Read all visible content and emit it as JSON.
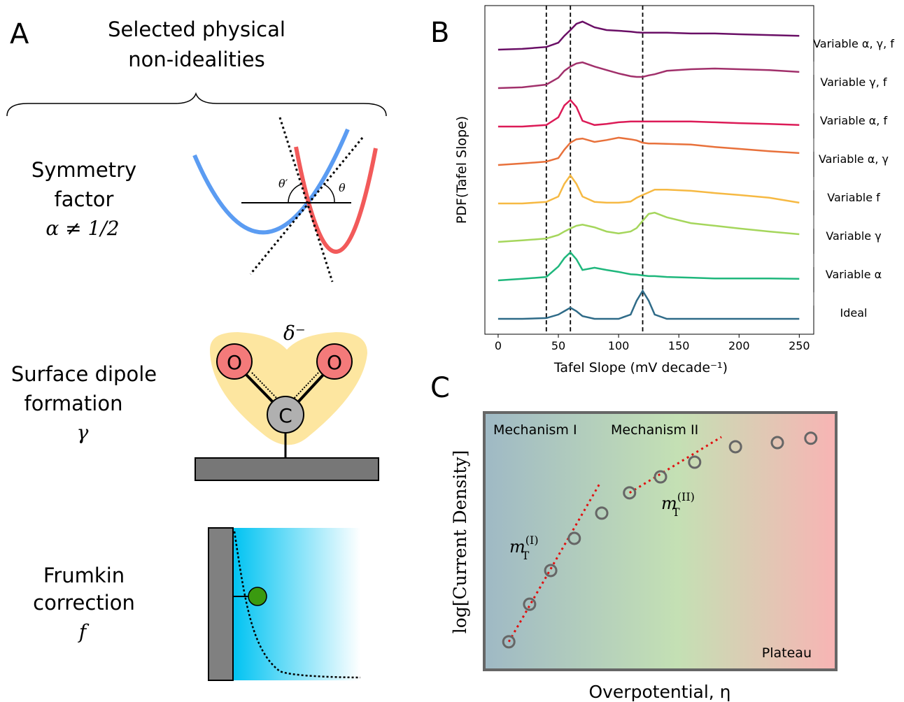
{
  "panel_a": {
    "label": "A",
    "heading_lines": [
      "Selected physical",
      "non-idealities"
    ],
    "symmetry": {
      "lines": [
        "Symmetry",
        "factor"
      ],
      "symbol": "α ≠ 1/2",
      "angle_left": "θ′",
      "angle_right": "θ"
    },
    "dipole": {
      "lines": [
        "Surface dipole",
        "formation"
      ],
      "symbol": "γ",
      "charge": "δ⁻",
      "atom_o1": "O",
      "atom_o2": "O",
      "atom_c": "C"
    },
    "frumkin": {
      "lines": [
        "Frumkin",
        "correction"
      ],
      "symbol": "f"
    }
  },
  "chart_data": [
    {
      "type": "ridgeline",
      "panel_label": "B",
      "x_label": "Tafel Slope (mV decade⁻¹)",
      "y_label": "PDF(Tafel Slope)",
      "xlim": [
        -11,
        262
      ],
      "xticks": [
        0,
        50,
        100,
        150,
        200,
        250
      ],
      "reference_lines": [
        40,
        60,
        120
      ],
      "x": [
        0,
        20,
        40,
        50,
        55,
        60,
        65,
        70,
        80,
        90,
        100,
        110,
        115,
        120,
        125,
        130,
        140,
        160,
        180,
        200,
        225,
        250
      ],
      "series": [
        {
          "name": "Ideal",
          "color": "#2f6b88",
          "values": [
            0,
            0,
            0.02,
            0.11,
            0.2,
            0.29,
            0.2,
            0.07,
            0,
            0,
            0,
            0.11,
            0.47,
            0.73,
            0.47,
            0.11,
            0,
            0,
            0,
            0,
            0,
            0
          ]
        },
        {
          "name": "Variable α",
          "color": "#1fb77c",
          "values": [
            0,
            0.04,
            0.09,
            0.36,
            0.58,
            0.73,
            0.55,
            0.27,
            0.33,
            0.27,
            0.22,
            0.16,
            0.15,
            0.13,
            0.11,
            0.11,
            0.09,
            0.07,
            0.05,
            0.05,
            0.05,
            0.04
          ]
        },
        {
          "name": "Variable γ",
          "color": "#a5d65c",
          "values": [
            0,
            0.04,
            0.09,
            0.18,
            0.27,
            0.35,
            0.42,
            0.45,
            0.38,
            0.27,
            0.22,
            0.27,
            0.36,
            0.55,
            0.73,
            0.76,
            0.64,
            0.49,
            0.42,
            0.35,
            0.27,
            0.2
          ]
        },
        {
          "name": "Variable f",
          "color": "#f6b943",
          "values": [
            0,
            0,
            0.04,
            0.18,
            0.51,
            0.73,
            0.51,
            0.18,
            0.04,
            0.02,
            0.02,
            0.05,
            0.15,
            0.22,
            0.29,
            0.36,
            0.36,
            0.33,
            0.27,
            0.22,
            0.15,
            0.02
          ]
        },
        {
          "name": "Variable α, γ",
          "color": "#e8713b",
          "values": [
            0,
            0.04,
            0.09,
            0.18,
            0.4,
            0.58,
            0.67,
            0.69,
            0.6,
            0.65,
            0.71,
            0.67,
            0.64,
            0.58,
            0.56,
            0.56,
            0.55,
            0.53,
            0.47,
            0.42,
            0.36,
            0.31
          ]
        },
        {
          "name": "Variable α, f",
          "color": "#dc1b57",
          "values": [
            0,
            0,
            0.04,
            0.24,
            0.55,
            0.69,
            0.51,
            0.15,
            0.04,
            0.07,
            0.11,
            0.13,
            0.13,
            0.13,
            0.13,
            0.13,
            0.13,
            0.13,
            0.11,
            0.09,
            0.07,
            0.04
          ]
        },
        {
          "name": "Variable γ, f",
          "color": "#a1306b",
          "values": [
            0,
            0.02,
            0.09,
            0.27,
            0.45,
            0.56,
            0.64,
            0.67,
            0.56,
            0.47,
            0.38,
            0.31,
            0.29,
            0.29,
            0.33,
            0.36,
            0.45,
            0.49,
            0.51,
            0.49,
            0.47,
            0.42
          ]
        },
        {
          "name": "Variable α, γ, f",
          "color": "#6a0f66",
          "values": [
            0,
            0.02,
            0.07,
            0.18,
            0.36,
            0.51,
            0.67,
            0.73,
            0.58,
            0.51,
            0.49,
            0.47,
            0.45,
            0.44,
            0.44,
            0.44,
            0.44,
            0.42,
            0.42,
            0.4,
            0.38,
            0.36
          ]
        }
      ]
    },
    {
      "type": "scatter",
      "panel_label": "C",
      "x_label": "Overpotential, η",
      "y_label": "log[Current Density]",
      "xlim": [
        0,
        10
      ],
      "ylim": [
        0,
        10
      ],
      "x": [
        0.7,
        1.29,
        1.89,
        2.56,
        3.34,
        4.13,
        5.01,
        5.98,
        7.14,
        8.33,
        9.28
      ],
      "values": [
        1.09,
        2.55,
        3.86,
        5.11,
        6.09,
        6.88,
        7.5,
        8.07,
        8.67,
        8.83,
        9.0
      ],
      "color": "#666666",
      "fits": [
        {
          "x": [
            0.7,
            3.3
          ],
          "y": [
            1.09,
            7.28
          ],
          "label": {
            "base": "m",
            "sub": "T",
            "sup": "(I)"
          }
        },
        {
          "x": [
            4.13,
            6.74
          ],
          "y": [
            6.88,
            9.05
          ],
          "label": {
            "base": "m",
            "sub": "T",
            "sup": "(II)"
          }
        }
      ],
      "fit_color": "#e01010",
      "regions": [
        "Mechanism I",
        "Mechanism II",
        "Plateau"
      ]
    }
  ]
}
